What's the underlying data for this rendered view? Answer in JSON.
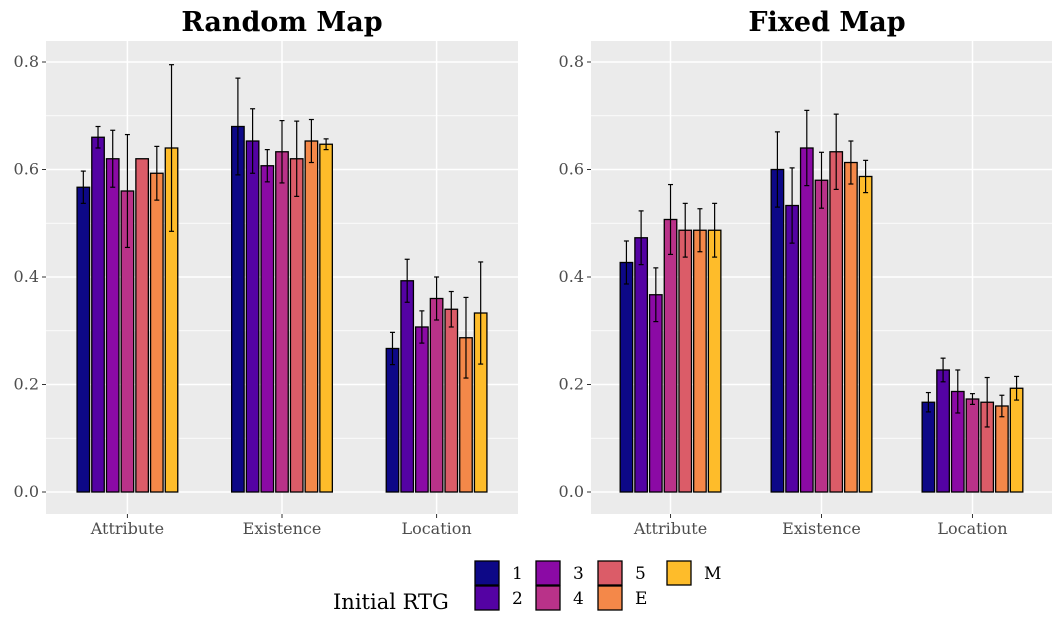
{
  "chart_data": [
    {
      "type": "bar",
      "title": "Random Map",
      "xlabel": "",
      "ylabel": "",
      "ylim": [
        0,
        0.8
      ],
      "yticks": [
        "0.0",
        "0.2",
        "0.4",
        "0.6",
        "0.8"
      ],
      "grid": true,
      "categories": [
        "Attribute",
        "Existence",
        "Location"
      ],
      "series": [
        {
          "name": "1",
          "color": "#0d0887",
          "values": [
            0.567,
            0.68,
            0.267
          ],
          "err": [
            0.03,
            0.09,
            0.03
          ]
        },
        {
          "name": "2",
          "color": "#5402a3",
          "values": [
            0.66,
            0.653,
            0.393
          ],
          "err": [
            0.02,
            0.06,
            0.04
          ]
        },
        {
          "name": "3",
          "color": "#8b0aa5",
          "values": [
            0.62,
            0.607,
            0.307
          ],
          "err": [
            0.053,
            0.03,
            0.03
          ]
        },
        {
          "name": "4",
          "color": "#b93289",
          "values": [
            0.56,
            0.633,
            0.36
          ],
          "err": [
            0.105,
            0.058,
            0.04
          ]
        },
        {
          "name": "5",
          "color": "#db5c68",
          "values": [
            0.62,
            0.62,
            0.34
          ],
          "err": [
            0.0,
            0.07,
            0.033
          ]
        },
        {
          "name": "E",
          "color": "#f48849",
          "values": [
            0.593,
            0.653,
            0.287
          ],
          "err": [
            0.05,
            0.04,
            0.075
          ]
        },
        {
          "name": "M",
          "color": "#febc2a",
          "values": [
            0.64,
            0.647,
            0.333
          ],
          "err": [
            0.155,
            0.01,
            0.095
          ]
        }
      ]
    },
    {
      "type": "bar",
      "title": "Fixed Map",
      "xlabel": "",
      "ylabel": "",
      "ylim": [
        0,
        0.8
      ],
      "yticks": [
        "0.0",
        "0.2",
        "0.4",
        "0.6",
        "0.8"
      ],
      "grid": true,
      "categories": [
        "Attribute",
        "Existence",
        "Location"
      ],
      "series": [
        {
          "name": "1",
          "color": "#0d0887",
          "values": [
            0.427,
            0.6,
            0.167
          ],
          "err": [
            0.04,
            0.07,
            0.018
          ]
        },
        {
          "name": "2",
          "color": "#5402a3",
          "values": [
            0.473,
            0.533,
            0.227
          ],
          "err": [
            0.05,
            0.07,
            0.022
          ]
        },
        {
          "name": "3",
          "color": "#8b0aa5",
          "values": [
            0.367,
            0.64,
            0.187
          ],
          "err": [
            0.05,
            0.07,
            0.04
          ]
        },
        {
          "name": "4",
          "color": "#b93289",
          "values": [
            0.507,
            0.58,
            0.173
          ],
          "err": [
            0.065,
            0.052,
            0.01
          ]
        },
        {
          "name": "5",
          "color": "#db5c68",
          "values": [
            0.487,
            0.633,
            0.167
          ],
          "err": [
            0.05,
            0.07,
            0.046
          ]
        },
        {
          "name": "E",
          "color": "#f48849",
          "values": [
            0.487,
            0.613,
            0.16
          ],
          "err": [
            0.04,
            0.04,
            0.02
          ]
        },
        {
          "name": "M",
          "color": "#febc2a",
          "values": [
            0.487,
            0.587,
            0.193
          ],
          "err": [
            0.05,
            0.03,
            0.022
          ]
        }
      ]
    }
  ],
  "legend": {
    "title": "Initial RTG",
    "placement": "bottom",
    "items": [
      {
        "label": "1",
        "color": "#0d0887"
      },
      {
        "label": "2",
        "color": "#5402a3"
      },
      {
        "label": "3",
        "color": "#8b0aa5"
      },
      {
        "label": "4",
        "color": "#b93289"
      },
      {
        "label": "5",
        "color": "#db5c68"
      },
      {
        "label": "E",
        "color": "#f48849"
      },
      {
        "label": "M",
        "color": "#febc2a"
      }
    ]
  }
}
